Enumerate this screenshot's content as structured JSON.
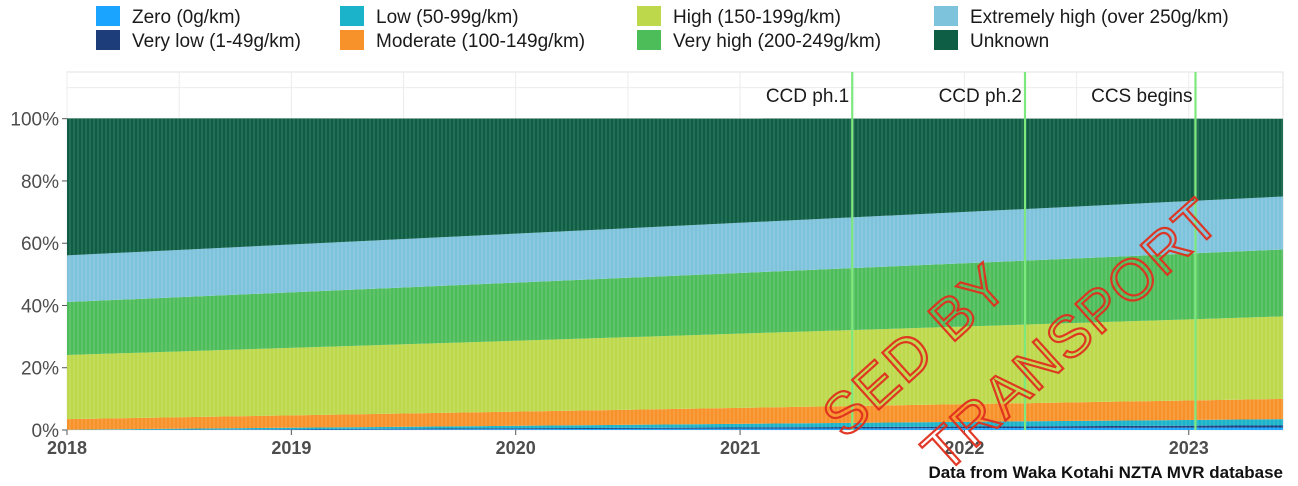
{
  "chart_data": {
    "type": "area",
    "stacked": true,
    "percent": true,
    "x_start": 2018.0,
    "x_end": 2023.42,
    "xlim": [
      2018.0,
      2023.42
    ],
    "ylim": [
      0,
      115
    ],
    "xticks": [
      2018,
      2019,
      2020,
      2021,
      2022,
      2023
    ],
    "xtick_labels": [
      "2018",
      "2019",
      "2020",
      "2021",
      "2022",
      "2023"
    ],
    "yticks": [
      0,
      20,
      40,
      60,
      80,
      100
    ],
    "ytick_labels": [
      "0%",
      "20%",
      "40%",
      "60%",
      "80%",
      "100%"
    ],
    "grid": true,
    "legend_position": "top",
    "series": [
      {
        "name": "Zero (0g/km)",
        "color": "#1aa3ff",
        "values_start": 0.0,
        "values_end": 0.8
      },
      {
        "name": "Very low (1-49g/km)",
        "color": "#1c3d7a",
        "values_start": 0.0,
        "values_end": 0.7
      },
      {
        "name": "Low (50-99g/km)",
        "color": "#1bb3c9",
        "values_start": 0.1,
        "values_end": 2.0
      },
      {
        "name": "Moderate (100-149g/km)",
        "color": "#f7922a",
        "values_start": 3.4,
        "values_end": 6.5
      },
      {
        "name": "High (150-199g/km)",
        "color": "#bdd84a",
        "values_start": 20.6,
        "values_end": 26.5
      },
      {
        "name": "Very high (200-249g/km)",
        "color": "#4dbd5a",
        "values_start": 17.0,
        "values_end": 21.5
      },
      {
        "name": "Extremely high (over 250g/km)",
        "color": "#7ec3dc",
        "values_start": 15.0,
        "values_end": 17.0
      },
      {
        "name": "Unknown",
        "color": "#0e5e45",
        "values_start": 44.0,
        "values_end": 25.0
      }
    ],
    "vlines": [
      {
        "x": 2021.5,
        "label": "CCD ph.1",
        "color": "#7de87d"
      },
      {
        "x": 2022.27,
        "label": "CCD ph.2",
        "color": "#7de87d"
      },
      {
        "x": 2023.03,
        "label": "CCS begins",
        "color": "#7de87d"
      }
    ],
    "annotation": "Data from Waka Kotahi NZTA MVR database",
    "watermark": [
      "SED BY",
      "TRANSPORT"
    ]
  }
}
